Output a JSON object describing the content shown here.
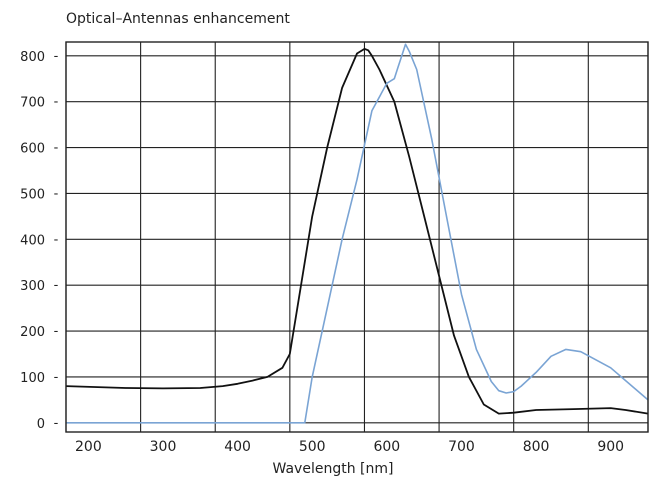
{
  "chart_data": {
    "type": "line",
    "title": "Optical–Antennas enhancement",
    "xlabel": "Wavelength [nm]",
    "ylabel": "",
    "xlim": [
      170,
      950
    ],
    "ylim": [
      -20,
      830
    ],
    "x_ticks": [
      200,
      300,
      400,
      500,
      600,
      700,
      800,
      900
    ],
    "x_tick_labels": [
      "200",
      "300",
      "400",
      "500",
      "600",
      "700",
      "800",
      "900"
    ],
    "y_ticks": [
      0,
      100,
      200,
      300,
      400,
      500,
      600,
      700,
      800
    ],
    "y_tick_labels": [
      "0",
      "100",
      "200",
      "300",
      "400",
      "500",
      "600",
      "700",
      "800"
    ],
    "x_gridlines": [
      170,
      270,
      370,
      470,
      570,
      670,
      770,
      870,
      950
    ],
    "grid": true,
    "legend": "none",
    "series": [
      {
        "color": "#111111",
        "x": [
          170,
          250,
          300,
          350,
          380,
          400,
          420,
          440,
          460,
          470,
          480,
          500,
          520,
          540,
          560,
          570,
          575,
          580,
          590,
          610,
          630,
          650,
          670,
          690,
          710,
          730,
          750,
          770,
          800,
          850,
          900,
          920,
          950
        ],
        "y": [
          80,
          76,
          75,
          76,
          80,
          85,
          92,
          100,
          120,
          150,
          250,
          450,
          600,
          730,
          805,
          815,
          812,
          800,
          770,
          700,
          580,
          450,
          320,
          190,
          100,
          40,
          20,
          22,
          28,
          30,
          32,
          28,
          20
        ]
      },
      {
        "color": "#7aa4d4",
        "x": [
          170,
          300,
          400,
          480,
          490,
          500,
          520,
          540,
          560,
          580,
          600,
          610,
          615,
          620,
          625,
          630,
          640,
          660,
          680,
          700,
          720,
          740,
          750,
          760,
          770,
          780,
          800,
          820,
          840,
          860,
          900,
          950
        ],
        "y": [
          0,
          0,
          0,
          0,
          0,
          100,
          250,
          400,
          530,
          680,
          740,
          750,
          775,
          800,
          825,
          810,
          770,
          620,
          450,
          280,
          160,
          90,
          70,
          65,
          68,
          80,
          110,
          145,
          160,
          155,
          120,
          50
        ]
      }
    ]
  }
}
